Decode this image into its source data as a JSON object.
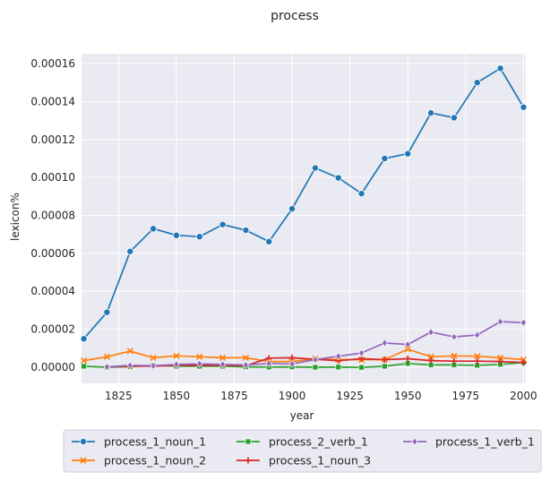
{
  "chart_data": {
    "type": "line",
    "title": "process",
    "xlabel": "year",
    "ylabel": "lexicon%",
    "xlim": [
      1809,
      2001
    ],
    "ylim": [
      -8.5e-06,
      0.0001652
    ],
    "xticks": [
      1825,
      1850,
      1875,
      1900,
      1925,
      1950,
      1975,
      2000
    ],
    "xtick_labels": [
      "1825",
      "1850",
      "1875",
      "1900",
      "1925",
      "1950",
      "1975",
      "2000"
    ],
    "yticks": [
      0,
      2e-05,
      4e-05,
      6e-05,
      8e-05,
      0.0001,
      0.00012,
      0.00014,
      0.00016
    ],
    "ytick_labels": [
      "0.00000",
      "0.00002",
      "0.00004",
      "0.00006",
      "0.00008",
      "0.00010",
      "0.00012",
      "0.00014",
      "0.00016"
    ],
    "grid": true,
    "legend_position": "bottom",
    "x": [
      1810,
      1820,
      1830,
      1840,
      1850,
      1860,
      1870,
      1880,
      1890,
      1900,
      1910,
      1920,
      1930,
      1940,
      1950,
      1960,
      1970,
      1980,
      1990,
      2000
    ],
    "series": [
      {
        "name": "process_1_noun_1",
        "color": "#1f77b4",
        "marker": "circle",
        "x": [
          1810,
          1820,
          1830,
          1840,
          1850,
          1860,
          1870,
          1880,
          1890,
          1900,
          1910,
          1920,
          1930,
          1940,
          1950,
          1960,
          1970,
          1980,
          1990,
          2000
        ],
        "values": [
          1.5e-05,
          2.9e-05,
          6.1e-05,
          7.3e-05,
          6.95e-05,
          6.88e-05,
          7.52e-05,
          7.22e-05,
          6.62e-05,
          8.35e-05,
          0.000105,
          9.98e-05,
          9.15e-05,
          0.00011,
          0.0001125,
          0.000134,
          0.0001315,
          0.00015,
          0.0001575,
          0.000137
        ]
      },
      {
        "name": "process_1_noun_2",
        "color": "#ff7f0e",
        "marker": "x",
        "x": [
          1810,
          1820,
          1830,
          1840,
          1850,
          1860,
          1870,
          1880,
          1890,
          1900,
          1910,
          1920,
          1930,
          1940,
          1950,
          1960,
          1970,
          1980,
          1990,
          2000
        ],
        "values": [
          3.5e-06,
          5.5e-06,
          8.5e-06,
          5e-06,
          6e-06,
          5.5e-06,
          5e-06,
          5e-06,
          3e-06,
          3e-06,
          4.5e-06,
          4e-06,
          4e-06,
          4e-06,
          9.5e-06,
          5.5e-06,
          6e-06,
          5.8e-06,
          5e-06,
          4e-06
        ]
      },
      {
        "name": "process_2_verb_1",
        "color": "#2ca02c",
        "marker": "square",
        "x": [
          1810,
          1820,
          1830,
          1840,
          1850,
          1860,
          1870,
          1880,
          1890,
          1900,
          1910,
          1920,
          1930,
          1940,
          1950,
          1960,
          1970,
          1980,
          1990,
          2000
        ],
        "values": [
          5e-07,
          0.0,
          3e-07,
          1e-06,
          5e-07,
          5e-07,
          5e-07,
          2e-07,
          1e-07,
          2e-07,
          0.0,
          1e-07,
          -1e-07,
          5e-07,
          2e-06,
          1.2e-06,
          1.2e-06,
          1e-06,
          1.5e-06,
          2.5e-06
        ]
      },
      {
        "name": "process_1_noun_3",
        "color": "#d62728",
        "marker": "plus",
        "x": [
          1820,
          1830,
          1840,
          1850,
          1860,
          1870,
          1880,
          1890,
          1900,
          1910,
          1920,
          1930,
          1940,
          1950,
          1960,
          1970,
          1980,
          1990,
          2000
        ],
        "values": [
          2e-07,
          5e-07,
          5e-07,
          1e-06,
          1e-06,
          1e-06,
          8e-07,
          4.8e-06,
          5e-06,
          4.2e-06,
          3.5e-06,
          4.5e-06,
          4e-06,
          4.5e-06,
          3.5e-06,
          3.2e-06,
          3.2e-06,
          3e-06,
          2.5e-06
        ]
      },
      {
        "name": "process_1_verb_1",
        "color": "#9467bd",
        "marker": "diamond",
        "x": [
          1820,
          1830,
          1840,
          1850,
          1860,
          1870,
          1880,
          1890,
          1900,
          1910,
          1920,
          1930,
          1940,
          1950,
          1960,
          1970,
          1980,
          1990,
          2000
        ],
        "values": [
          2e-07,
          1e-06,
          8e-07,
          1.5e-06,
          1.8e-06,
          1.5e-06,
          1.2e-06,
          2e-06,
          1.8e-06,
          4e-06,
          5.8e-06,
          7.5e-06,
          1.28e-05,
          1.2e-05,
          1.85e-05,
          1.6e-05,
          1.7e-05,
          2.4e-05,
          2.35e-05
        ]
      }
    ]
  }
}
